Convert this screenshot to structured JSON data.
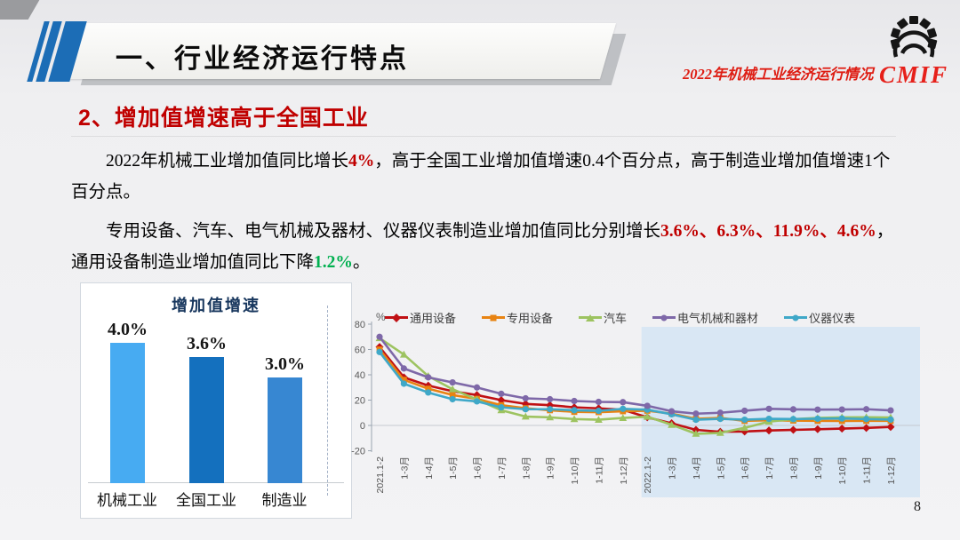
{
  "header": {
    "title": "一、行业经济运行特点",
    "subtitle": "2022年机械工业经济运行情况",
    "logo_text": "CMIF"
  },
  "section": {
    "heading": "2、增加值增速高于全国工业"
  },
  "body": {
    "p1": {
      "pre": "2022年机械工业增加值同比增长",
      "highlight_red": "4%",
      "post": "，高于全国工业增加值增速0.4个百分点，高于制造业增加值增速1个百分点。"
    },
    "p2": {
      "pre": "专用设备、汽车、电气机械及器材、仪器仪表制造业增加值同比分别增长",
      "highlight_red": "3.6%、6.3%、11.9%、4.6%",
      "mid": "，通用设备制造业增加值同比下降",
      "highlight_green": "1.2%",
      "end": "。"
    }
  },
  "colors": {
    "accent_blue": "#1c6db6",
    "accent_red": "#c00000",
    "accent_green": "#00b050",
    "logo_red": "#e6201a",
    "highlight_band": "#d9e7f4"
  },
  "page_number": "8",
  "chart_data": [
    {
      "type": "bar",
      "title": "增加值增速",
      "categories": [
        "机械工业",
        "全国工业",
        "制造业"
      ],
      "values": [
        4.0,
        3.6,
        3.0
      ],
      "value_labels": [
        "4.0%",
        "3.6%",
        "3.0%"
      ],
      "bar_colors": [
        "#47abf2",
        "#1470be",
        "#3787d2"
      ],
      "xlabel": "",
      "ylabel": "",
      "ylim": [
        0,
        4.6
      ]
    },
    {
      "type": "line",
      "title": "",
      "ylabel": "%",
      "ylim": [
        -20,
        80
      ],
      "yticks": [
        80,
        60,
        40,
        20,
        0,
        -20
      ],
      "grid": "zero-line-only",
      "legend_position": "top",
      "highlight_region": {
        "from_category": "2022.1-2",
        "to_category": "1-12月",
        "color": "#d9e7f4"
      },
      "categories": [
        "2021.1-2",
        "1-3月",
        "1-4月",
        "1-5月",
        "1-6月",
        "1-7月",
        "1-8月",
        "1-9月",
        "1-10月",
        "1-11月",
        "1-12月",
        "2022.1-2",
        "1-3月",
        "1-4月",
        "1-5月",
        "1-6月",
        "1-7月",
        "1-8月",
        "1-9月",
        "1-10月",
        "1-11月",
        "1-12月"
      ],
      "series": [
        {
          "name": "通用设备",
          "color": "#c01014",
          "marker": "diamond",
          "values": [
            62,
            38,
            31.5,
            27,
            24,
            20,
            17,
            16,
            14.3,
            13.5,
            12.4,
            6.4,
            1.7,
            -3.5,
            -5,
            -4.8,
            -4,
            -3.5,
            -3,
            -2.5,
            -2,
            -1.2
          ]
        },
        {
          "name": "专用设备",
          "color": "#e88312",
          "marker": "square",
          "values": [
            60,
            36,
            29,
            24,
            21,
            16,
            13.6,
            12,
            10.7,
            10.5,
            11.2,
            11.6,
            9.3,
            5.2,
            5.9,
            3.6,
            4.1,
            3.8,
            3.6,
            3.5,
            3.6,
            3.6
          ]
        },
        {
          "name": "汽车",
          "color": "#9dc360",
          "marker": "triangle",
          "values": [
            69,
            56,
            39,
            28.6,
            20.5,
            12,
            7,
            6.4,
            5,
            4.5,
            5.9,
            6.9,
            0.5,
            -6.6,
            -5.9,
            -1.9,
            3,
            5,
            5.9,
            6.4,
            6.5,
            6.3
          ]
        },
        {
          "name": "电气机械和器材",
          "color": "#7e68a8",
          "marker": "circle",
          "values": [
            70,
            45,
            38,
            34,
            30,
            25,
            21.4,
            20.7,
            19.3,
            18.6,
            18.4,
            15.5,
            11.2,
            9.3,
            10,
            11.6,
            13.1,
            12.7,
            12.5,
            12.6,
            12.8,
            11.9
          ]
        },
        {
          "name": "仪器仪表",
          "color": "#3fa8c8",
          "marker": "circle",
          "values": [
            58,
            33,
            26,
            20.7,
            19,
            14.3,
            12.8,
            12.8,
            12,
            11.5,
            13.1,
            12.4,
            8.8,
            4.5,
            5.2,
            4.5,
            5.2,
            5,
            5.3,
            5.5,
            5,
            4.6
          ]
        }
      ]
    }
  ]
}
